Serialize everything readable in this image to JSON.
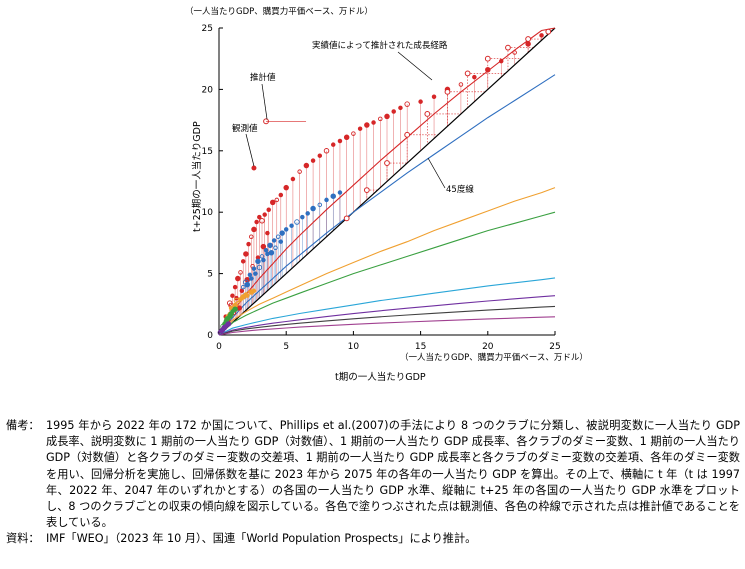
{
  "chart_data": {
    "type": "scatter",
    "x_unit_label": "（一人当たりGDP、購買力平価ベース、万ドル）",
    "y_unit_label": "（一人当たりGDP、購買力平価ベース、万ドル）",
    "xlabel": "t期の一人当たりGDP",
    "ylabel": "t+25期の一人当たりGDP",
    "xlim": [
      0,
      25
    ],
    "ylim": [
      0,
      25
    ],
    "xticks": [
      "0",
      "5",
      "10",
      "15",
      "20",
      "25"
    ],
    "yticks": [
      "0",
      "5",
      "10",
      "15",
      "20",
      "25"
    ],
    "grid": false,
    "annotations": {
      "path": "実績値によって推計された成長経路",
      "estimated": "推計値",
      "observed": "観測値",
      "diag": "45度線"
    },
    "reference_line": {
      "x": [
        0,
        25
      ],
      "y": [
        0,
        25
      ]
    },
    "curves": [
      {
        "color": "#d62728",
        "x": [
          0,
          1,
          2,
          3,
          4,
          5,
          6,
          8,
          10,
          12,
          14,
          16,
          18,
          20,
          22,
          24,
          25
        ],
        "y": [
          0,
          1.9,
          3.3,
          4.6,
          5.8,
          7.0,
          8.1,
          10.2,
          12.2,
          14.2,
          16.1,
          18.0,
          19.8,
          21.5,
          23.2,
          24.8,
          25.5
        ]
      },
      {
        "color": "#2f6fc0",
        "x": [
          0,
          1,
          2,
          3,
          4,
          5,
          6,
          8,
          10,
          12,
          14,
          16,
          18,
          20,
          22,
          24,
          25
        ],
        "y": [
          0,
          1.4,
          2.6,
          3.6,
          4.6,
          5.6,
          6.5,
          8.3,
          10.0,
          11.6,
          13.2,
          14.7,
          16.2,
          17.7,
          19.1,
          20.5,
          21.2
        ]
      },
      {
        "color": "#f0a030",
        "x": [
          0,
          1,
          2,
          3,
          4,
          5,
          6,
          8,
          10,
          12,
          14,
          16,
          18,
          20,
          22,
          24,
          25
        ],
        "y": [
          0,
          1.2,
          1.9,
          2.5,
          3.0,
          3.5,
          4.0,
          5.0,
          5.9,
          6.8,
          7.6,
          8.5,
          9.3,
          10.1,
          10.9,
          11.6,
          12.0
        ]
      },
      {
        "color": "#3aa041",
        "x": [
          0,
          1,
          2,
          3,
          4,
          5,
          6,
          8,
          10,
          12,
          14,
          16,
          18,
          20,
          22,
          24,
          25
        ],
        "y": [
          0,
          1.0,
          1.6,
          2.1,
          2.6,
          3.0,
          3.4,
          4.2,
          5.0,
          5.7,
          6.4,
          7.1,
          7.8,
          8.5,
          9.1,
          9.7,
          10.0
        ]
      },
      {
        "color": "#2aa6d8",
        "x": [
          0,
          1,
          2,
          3,
          4,
          5,
          6,
          8,
          10,
          12,
          14,
          16,
          18,
          20,
          22,
          24,
          25
        ],
        "y": [
          0,
          0.55,
          0.85,
          1.1,
          1.35,
          1.55,
          1.75,
          2.1,
          2.45,
          2.8,
          3.1,
          3.4,
          3.7,
          4.0,
          4.25,
          4.5,
          4.65
        ]
      },
      {
        "color": "#7030a0",
        "x": [
          0,
          1,
          2,
          3,
          4,
          5,
          6,
          8,
          10,
          12,
          14,
          16,
          18,
          20,
          22,
          24,
          25
        ],
        "y": [
          0,
          0.4,
          0.62,
          0.8,
          0.96,
          1.1,
          1.24,
          1.5,
          1.74,
          1.97,
          2.18,
          2.38,
          2.58,
          2.77,
          2.95,
          3.12,
          3.2
        ]
      },
      {
        "color": "#404040",
        "x": [
          0,
          1,
          2,
          3,
          4,
          5,
          6,
          8,
          10,
          12,
          14,
          16,
          18,
          20,
          22,
          24,
          25
        ],
        "y": [
          0,
          0.32,
          0.5,
          0.63,
          0.75,
          0.86,
          0.96,
          1.15,
          1.32,
          1.48,
          1.63,
          1.77,
          1.9,
          2.03,
          2.15,
          2.27,
          2.33
        ]
      },
      {
        "color": "#a04090",
        "x": [
          0,
          1,
          2,
          3,
          4,
          5,
          6,
          8,
          10,
          12,
          14,
          16,
          18,
          20,
          22,
          24,
          25
        ],
        "y": [
          0,
          0.2,
          0.32,
          0.42,
          0.5,
          0.57,
          0.64,
          0.76,
          0.87,
          0.97,
          1.06,
          1.15,
          1.23,
          1.31,
          1.38,
          1.45,
          1.48
        ]
      }
    ],
    "observed_scatter": [
      {
        "name": "red club",
        "color": "#d62728",
        "points": [
          [
            0.8,
            2.6
          ],
          [
            1.0,
            3.2
          ],
          [
            1.2,
            3.9
          ],
          [
            1.4,
            4.6
          ],
          [
            1.6,
            5.1
          ],
          [
            1.8,
            6.0
          ],
          [
            2.0,
            6.6
          ],
          [
            2.2,
            7.4
          ],
          [
            2.4,
            8.0
          ],
          [
            2.6,
            8.6
          ],
          [
            2.8,
            9.2
          ],
          [
            3.0,
            9.6
          ],
          [
            3.2,
            9.3
          ],
          [
            3.4,
            9.8
          ],
          [
            3.7,
            10.2
          ],
          [
            4.0,
            10.8
          ],
          [
            4.3,
            11.0
          ],
          [
            4.6,
            11.4
          ],
          [
            5.0,
            12.0
          ],
          [
            5.5,
            12.7
          ],
          [
            6.0,
            13.3
          ],
          [
            6.5,
            13.8
          ],
          [
            7.0,
            14.2
          ],
          [
            7.5,
            14.6
          ],
          [
            8.0,
            15.0
          ],
          [
            8.5,
            15.5
          ],
          [
            9.0,
            15.8
          ],
          [
            9.5,
            16.1
          ],
          [
            10.0,
            16.4
          ],
          [
            10.5,
            16.8
          ],
          [
            11.0,
            17.1
          ],
          [
            11.5,
            17.3
          ],
          [
            12.0,
            17.6
          ],
          [
            12.5,
            17.8
          ],
          [
            13.0,
            18.2
          ],
          [
            13.5,
            18.5
          ],
          [
            14.0,
            18.8
          ],
          [
            15.0,
            19.0
          ],
          [
            16.0,
            19.4
          ],
          [
            17.0,
            20.0
          ],
          [
            18.0,
            20.4
          ],
          [
            19.0,
            21.0
          ],
          [
            20.0,
            21.6
          ],
          [
            21.0,
            22.3
          ],
          [
            22.0,
            23.0
          ],
          [
            23.0,
            23.7
          ],
          [
            24.0,
            24.4
          ],
          [
            0.5,
            1.5
          ],
          [
            0.9,
            2.4
          ],
          [
            1.3,
            3.0
          ],
          [
            1.7,
            3.6
          ],
          [
            2.1,
            4.5
          ],
          [
            2.5,
            5.6
          ],
          [
            2.9,
            6.3
          ],
          [
            3.3,
            7.2
          ],
          [
            3.6,
            8.3
          ],
          [
            1.1,
            1.8
          ],
          [
            1.5,
            2.2
          ],
          [
            0.7,
            1.2
          ]
        ]
      },
      {
        "name": "blue club",
        "color": "#2f6fc0",
        "points": [
          [
            2.0,
            4.3
          ],
          [
            2.3,
            4.9
          ],
          [
            2.6,
            5.4
          ],
          [
            2.9,
            6.0
          ],
          [
            3.2,
            6.4
          ],
          [
            3.5,
            6.9
          ],
          [
            3.8,
            7.3
          ],
          [
            4.1,
            7.7
          ],
          [
            4.4,
            8.0
          ],
          [
            4.7,
            8.3
          ],
          [
            5.0,
            8.6
          ],
          [
            5.4,
            8.9
          ],
          [
            5.8,
            9.2
          ],
          [
            6.2,
            9.6
          ],
          [
            6.6,
            9.9
          ],
          [
            7.0,
            10.3
          ],
          [
            7.5,
            10.6
          ],
          [
            8.0,
            11.0
          ],
          [
            8.5,
            11.3
          ],
          [
            9.0,
            11.6
          ],
          [
            1.8,
            3.9
          ],
          [
            2.1,
            4.1
          ],
          [
            2.4,
            4.6
          ],
          [
            2.7,
            5.0
          ],
          [
            3.0,
            5.5
          ],
          [
            3.3,
            6.1
          ],
          [
            3.6,
            6.6
          ],
          [
            3.9,
            6.7
          ],
          [
            4.2,
            7.1
          ],
          [
            4.6,
            7.6
          ]
        ]
      },
      {
        "name": "orange club",
        "color": "#f0a030",
        "points": [
          [
            0.6,
            1.3
          ],
          [
            0.8,
            1.7
          ],
          [
            1.0,
            2.0
          ],
          [
            1.2,
            2.4
          ],
          [
            1.4,
            2.6
          ],
          [
            1.6,
            2.9
          ],
          [
            1.8,
            3.1
          ],
          [
            2.0,
            3.3
          ],
          [
            2.2,
            3.4
          ],
          [
            2.4,
            3.5
          ],
          [
            2.6,
            3.6
          ],
          [
            0.9,
            2.2
          ],
          [
            1.3,
            2.8
          ],
          [
            1.7,
            3.0
          ],
          [
            2.1,
            3.2
          ],
          [
            0.7,
            1.5
          ]
        ]
      },
      {
        "name": "green club",
        "color": "#3aa041",
        "points": [
          [
            0.3,
            0.7
          ],
          [
            0.4,
            0.9
          ],
          [
            0.5,
            1.1
          ],
          [
            0.6,
            1.3
          ],
          [
            0.7,
            1.4
          ],
          [
            0.8,
            1.6
          ],
          [
            0.9,
            1.7
          ],
          [
            1.0,
            1.9
          ],
          [
            1.1,
            2.0
          ],
          [
            1.2,
            2.1
          ],
          [
            0.55,
            1.2
          ],
          [
            0.85,
            1.5
          ]
        ]
      },
      {
        "name": "purple club",
        "color": "#7030a0",
        "points": [
          [
            0.1,
            0.2
          ],
          [
            0.15,
            0.3
          ],
          [
            0.2,
            0.35
          ],
          [
            0.25,
            0.4
          ],
          [
            0.3,
            0.45
          ],
          [
            0.35,
            0.5
          ],
          [
            0.4,
            0.6
          ],
          [
            0.5,
            0.7
          ],
          [
            0.6,
            0.8
          ],
          [
            0.7,
            0.9
          ]
        ]
      }
    ],
    "growth_path_points": [
      [
        9.5,
        9.5
      ],
      [
        11.0,
        11.8
      ],
      [
        12.5,
        14.0
      ],
      [
        14.0,
        16.3
      ],
      [
        15.5,
        18.0
      ],
      [
        17.0,
        19.8
      ],
      [
        18.5,
        21.3
      ],
      [
        20.0,
        22.5
      ],
      [
        21.5,
        23.4
      ],
      [
        23.0,
        24.1
      ],
      [
        24.5,
        24.7
      ]
    ],
    "estimated_value": [
      3.5,
      17.4
    ],
    "observed_value": [
      2.6,
      13.6
    ]
  },
  "notes": [
    {
      "key": "備考：",
      "text": "1995 年から 2022 年の 172 か国について、Phillips et al.(2007)の手法により 8 つのクラブに分類し、被説明変数に一人当たり GDP 成長率、説明変数に 1 期前の一人当たり GDP（対数値）、1 期前の一人当たり GDP 成長率、各クラブのダミー変数、1 期前の一人当たり GDP（対数値）と各クラブのダミー変数の交差項、1 期前の一人当たり GDP 成長率と各クラブのダミー変数の交差項、各年のダミー変数を用い、回帰分析を実施し、回帰係数を基に 2023 年から 2075 年の各年の一人当たり GDP を算出。その上で、横軸に t 年（t は 1997 年、2022 年、2047 年のいずれかとする）の各国の一人当たり GDP 水準、縦軸に t+25 年の各国の一人当たり GDP 水準をプロットし、8 つのクラブごとの収束の傾向線を図示している。各色で塗りつぶされた点は観測値、各色の枠線で示された点は推計値であることを表している。"
    },
    {
      "key": "資料：",
      "text": "IMF「WEO」（2023 年 10 月）、国連「World Population Prospects」により推計。"
    }
  ]
}
